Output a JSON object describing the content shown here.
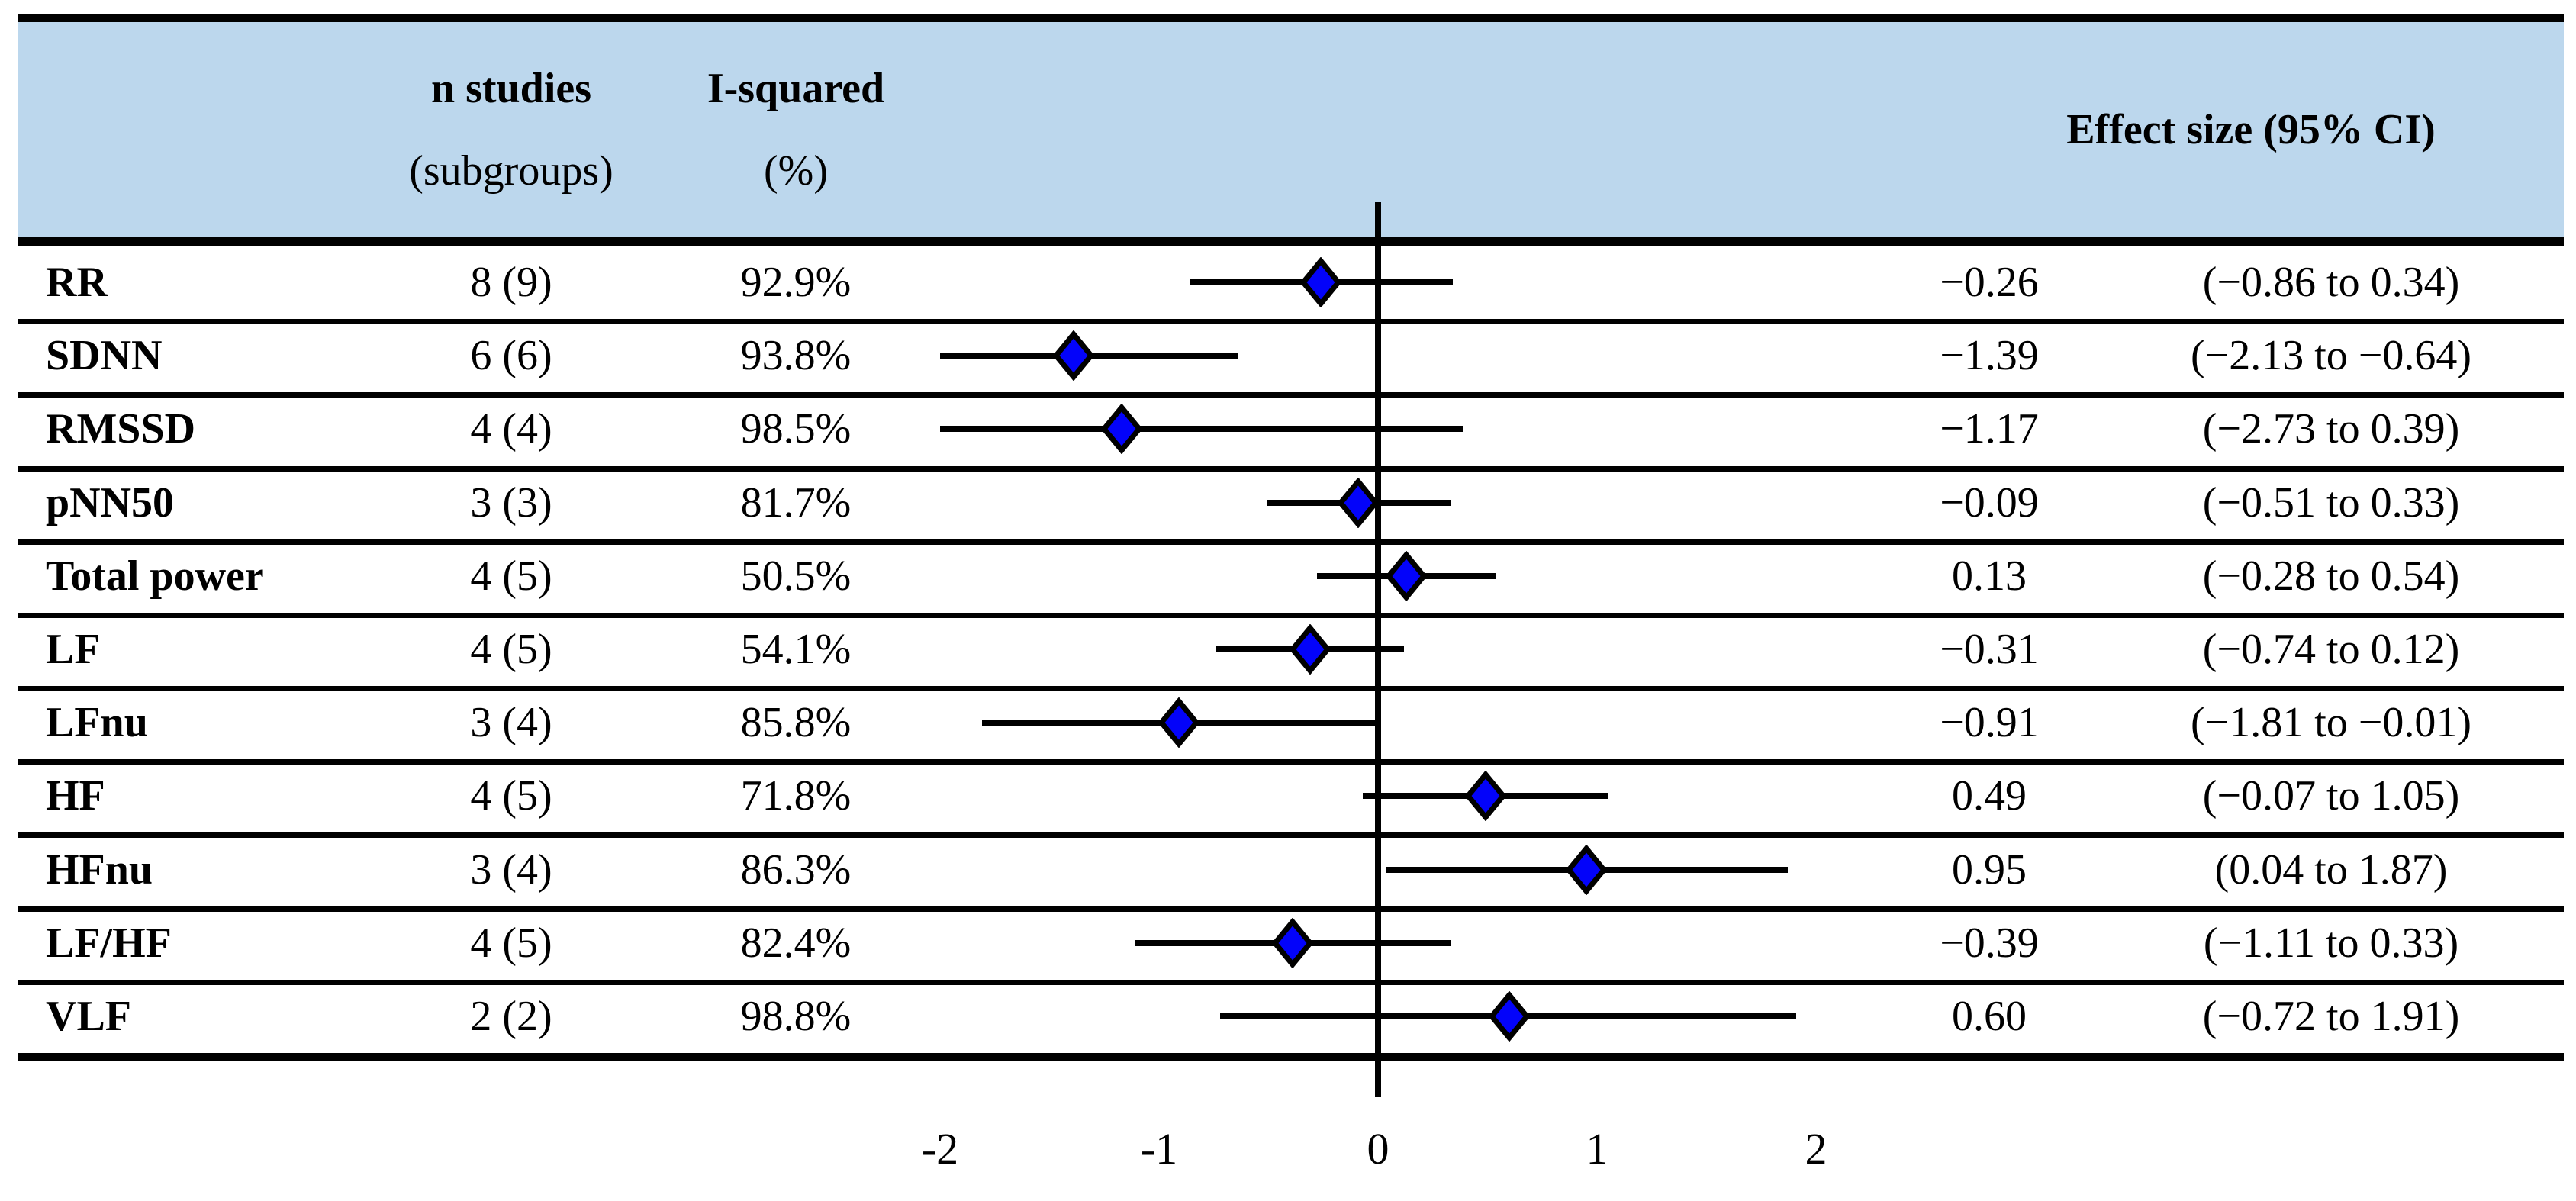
{
  "header": {
    "col_n_line1": "n studies",
    "col_n_line2": "(subgroups)",
    "col_i2_line1": "I-squared",
    "col_i2_line2": "(%)",
    "col_effect": "Effect size (95% CI)"
  },
  "colors": {
    "header_bg": "#BCD7ED",
    "diamond_fill": "#0303FA",
    "diamond_stroke": "#000000",
    "line_color": "#000000"
  },
  "chart_data": {
    "type": "scatter",
    "subtype": "forest-plot",
    "title": "",
    "xlabel": "",
    "xlim": [
      -2,
      2
    ],
    "x_ticks": [
      -2,
      -1,
      0,
      1,
      2
    ],
    "x_tick_labels": [
      "-2",
      "-1",
      "0",
      "1",
      "2"
    ],
    "reference_line": 0,
    "grid": false,
    "rows": [
      {
        "label": "RR",
        "n_studies": "8 (9)",
        "i_squared": "92.9%",
        "effect": -0.26,
        "ci_low": -0.86,
        "ci_high": 0.34,
        "effect_text": "−0.26",
        "ci_text": "(−0.86 to 0.34)"
      },
      {
        "label": "SDNN",
        "n_studies": "6 (6)",
        "i_squared": "93.8%",
        "effect": -1.39,
        "ci_low": -2.13,
        "ci_high": -0.64,
        "effect_text": "−1.39",
        "ci_text": "(−2.13 to −0.64)"
      },
      {
        "label": "RMSSD",
        "n_studies": "4 (4)",
        "i_squared": "98.5%",
        "effect": -1.17,
        "ci_low": -2.73,
        "ci_high": 0.39,
        "effect_text": "−1.17",
        "ci_text": "(−2.73 to 0.39)"
      },
      {
        "label": "pNN50",
        "n_studies": "3 (3)",
        "i_squared": "81.7%",
        "effect": -0.09,
        "ci_low": -0.51,
        "ci_high": 0.33,
        "effect_text": "−0.09",
        "ci_text": "(−0.51 to 0.33)"
      },
      {
        "label": "Total power",
        "n_studies": "4 (5)",
        "i_squared": "50.5%",
        "effect": 0.13,
        "ci_low": -0.28,
        "ci_high": 0.54,
        "effect_text": "0.13",
        "ci_text": "(−0.28 to 0.54)"
      },
      {
        "label": "LF",
        "n_studies": "4 (5)",
        "i_squared": "54.1%",
        "effect": -0.31,
        "ci_low": -0.74,
        "ci_high": 0.12,
        "effect_text": "−0.31",
        "ci_text": "(−0.74 to 0.12)"
      },
      {
        "label": "LFnu",
        "n_studies": "3 (4)",
        "i_squared": "85.8%",
        "effect": -0.91,
        "ci_low": -1.81,
        "ci_high": -0.01,
        "effect_text": "−0.91",
        "ci_text": "(−1.81 to −0.01)"
      },
      {
        "label": "HF",
        "n_studies": "4 (5)",
        "i_squared": "71.8%",
        "effect": 0.49,
        "ci_low": -0.07,
        "ci_high": 1.05,
        "effect_text": "0.49",
        "ci_text": "(−0.07 to 1.05)"
      },
      {
        "label": "HFnu",
        "n_studies": "3 (4)",
        "i_squared": "86.3%",
        "effect": 0.95,
        "ci_low": 0.04,
        "ci_high": 1.87,
        "effect_text": "0.95",
        "ci_text": "(0.04 to 1.87)"
      },
      {
        "label": "LF/HF",
        "n_studies": "4 (5)",
        "i_squared": "82.4%",
        "effect": -0.39,
        "ci_low": -1.11,
        "ci_high": 0.33,
        "effect_text": "−0.39",
        "ci_text": "(−1.11 to 0.33)"
      },
      {
        "label": "VLF",
        "n_studies": "2 (2)",
        "i_squared": "98.8%",
        "effect": 0.6,
        "ci_low": -0.72,
        "ci_high": 1.91,
        "effect_text": "0.60",
        "ci_text": "(−0.72 to 1.91)"
      }
    ]
  }
}
